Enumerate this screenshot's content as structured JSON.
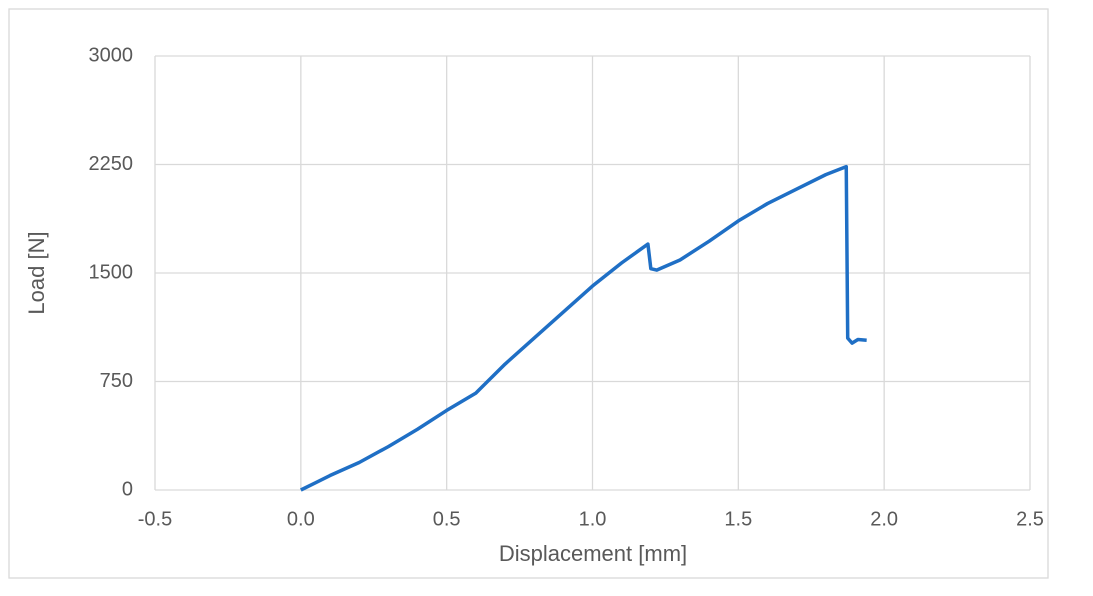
{
  "chart_data": {
    "type": "line",
    "x_label": "Displacement [mm]",
    "y_label": "Load [N]",
    "xlim": [
      -0.5,
      2.5
    ],
    "xticks": [
      -0.5,
      {
        "value": 0,
        "label": "0.0"
      },
      0.5,
      {
        "value": 1,
        "label": "1.0"
      },
      1.5,
      {
        "value": 2,
        "label": "2.0"
      },
      2.5
    ],
    "ylim": [
      0,
      3000
    ],
    "yticks": [
      0,
      750,
      1500,
      2250,
      3000
    ],
    "grid": true,
    "series": [
      {
        "color": "#1f6fc5",
        "x": [
          0,
          0.05,
          0.1,
          0.2,
          0.3,
          0.4,
          0.5,
          0.6,
          0.7,
          0.8,
          0.9,
          1.0,
          1.1,
          1.19,
          1.2,
          1.22,
          1.3,
          1.4,
          1.5,
          1.6,
          1.7,
          1.8,
          1.87,
          1.875,
          1.89,
          1.91,
          1.94
        ],
        "values": [
          0,
          50,
          100,
          190,
          300,
          420,
          550,
          670,
          870,
          1050,
          1230,
          1410,
          1570,
          1700,
          1530,
          1520,
          1590,
          1720,
          1860,
          1980,
          2080,
          2180,
          2235,
          1050,
          1015,
          1040,
          1035
        ]
      }
    ]
  }
}
